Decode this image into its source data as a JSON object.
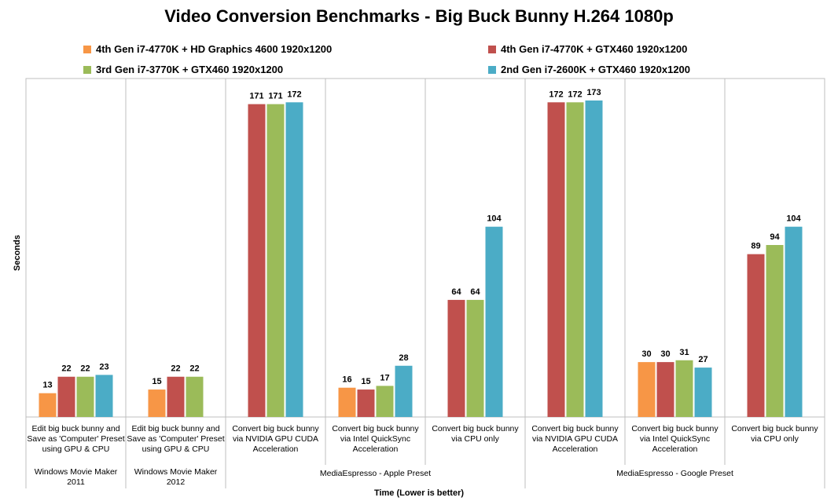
{
  "chart_data": {
    "type": "bar",
    "title": "Video Conversion Benchmarks - Big Buck Bunny H.264 1080p",
    "ylabel": "Seconds",
    "xlabel": "Time (Lower is better)",
    "ylim": [
      0,
      185
    ],
    "grid": false,
    "legend_position": "top",
    "categories": [
      "Edit big buck bunny and Save as 'Computer' Preset using GPU & CPU",
      "Edit big buck bunny and Save as 'Computer' Preset using GPU & CPU",
      "Convert big buck bunny via NVIDIA GPU CUDA Acceleration",
      "Convert big buck bunny via Intel QuickSync Acceleration",
      "Convert big buck bunny via CPU only",
      "Convert big buck bunny via NVIDIA GPU CUDA Acceleration",
      "Convert big buck bunny via Intel QuickSync Acceleration",
      "Convert big buck bunny via CPU only"
    ],
    "category_lines": [
      [
        "Edit big buck bunny and",
        "Save as 'Computer' Preset",
        "using GPU & CPU"
      ],
      [
        "Edit big buck bunny and",
        "Save as 'Computer' Preset",
        "using GPU & CPU"
      ],
      [
        "Convert big buck bunny",
        "via NVIDIA GPU CUDA",
        "Acceleration"
      ],
      [
        "Convert big buck bunny",
        "via Intel QuickSync",
        "Acceleration"
      ],
      [
        "Convert big buck bunny",
        "via CPU only"
      ],
      [
        "Convert big buck bunny",
        "via NVIDIA GPU CUDA",
        "Acceleration"
      ],
      [
        "Convert big buck bunny",
        "via Intel QuickSync",
        "Acceleration"
      ],
      [
        "Convert big buck bunny",
        "via CPU only"
      ]
    ],
    "groups": [
      {
        "label_lines": [
          "Windows Movie Maker",
          "2011"
        ],
        "start": 0,
        "end": 0
      },
      {
        "label_lines": [
          "Windows Movie Maker",
          "2012"
        ],
        "start": 1,
        "end": 1
      },
      {
        "label_lines": [
          "MediaEspresso - Apple Preset"
        ],
        "start": 2,
        "end": 4
      },
      {
        "label_lines": [
          "MediaEspresso - Google Preset"
        ],
        "start": 5,
        "end": 7
      }
    ],
    "series": [
      {
        "name": "4th Gen i7-4770K + HD Graphics 4600 1920x1200",
        "color": "#f79646",
        "values": [
          13,
          15,
          null,
          16,
          null,
          null,
          30,
          null
        ]
      },
      {
        "name": "4th Gen i7-4770K + GTX460 1920x1200",
        "color": "#c0504d",
        "values": [
          22,
          22,
          171,
          15,
          64,
          172,
          30,
          89
        ]
      },
      {
        "name": "3rd Gen i7-3770K + GTX460 1920x1200",
        "color": "#9bbb59",
        "values": [
          22,
          22,
          171,
          17,
          64,
          172,
          31,
          94
        ]
      },
      {
        "name": "2nd Gen i7-2600K + GTX460 1920x1200",
        "color": "#4bacc6",
        "values": [
          23,
          null,
          172,
          28,
          104,
          173,
          27,
          104
        ]
      }
    ]
  }
}
